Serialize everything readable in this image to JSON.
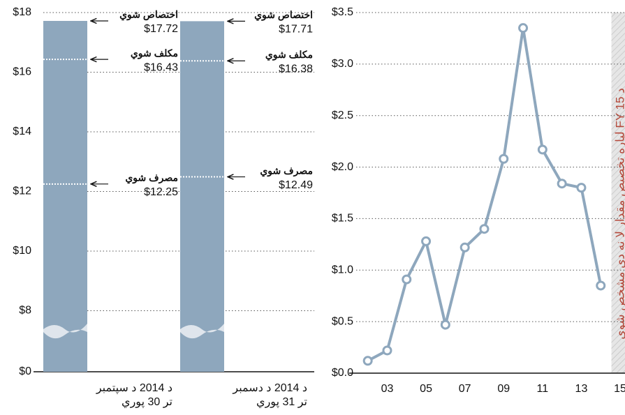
{
  "chart_data": [
    {
      "type": "bar",
      "categories": [
        [
          "د 2014 د سپتمبر",
          "تر 30 پوري"
        ],
        [
          "د 2014 د دسمبر",
          "تر 31 پوري"
        ]
      ],
      "series": [
        {
          "name": "اختصاص شوي",
          "values": [
            17.72,
            17.71
          ],
          "value_labels": [
            "$17.72",
            "$17.71"
          ]
        },
        {
          "name": "مکلف شوي",
          "values": [
            16.43,
            16.38
          ],
          "value_labels": [
            "$16.43",
            "$16.38"
          ]
        },
        {
          "name": "مصرف شوي",
          "values": [
            12.25,
            12.49
          ],
          "value_labels": [
            "$12.25",
            "$12.49"
          ]
        }
      ],
      "color": "#8ea7bd",
      "ylim": [
        0,
        18
      ],
      "y_break": [
        0,
        6
      ],
      "yticks": [
        {
          "value": 0,
          "label": "$0"
        },
        {
          "value": 8,
          "label": "$8"
        },
        {
          "value": 10,
          "label": "$10"
        },
        {
          "value": 12,
          "label": "$12"
        },
        {
          "value": 14,
          "label": "$14"
        },
        {
          "value": 16,
          "label": "$16"
        },
        {
          "value": 18,
          "label": "$18"
        }
      ],
      "grid": true
    },
    {
      "type": "line",
      "x": [
        2002,
        2003,
        2004,
        2005,
        2006,
        2007,
        2008,
        2009,
        2010,
        2011,
        2012,
        2013,
        2014
      ],
      "values": [
        0.12,
        0.22,
        0.91,
        1.28,
        0.47,
        1.22,
        1.4,
        2.08,
        3.35,
        2.17,
        1.84,
        1.8,
        0.85
      ],
      "color": "#8ea7bd",
      "xlim": [
        2001.4,
        2015.25
      ],
      "ylim": [
        0,
        3.5
      ],
      "xticks": [
        {
          "value": 2003,
          "label": "03"
        },
        {
          "value": 2005,
          "label": "05"
        },
        {
          "value": 2007,
          "label": "07"
        },
        {
          "value": 2009,
          "label": "09"
        },
        {
          "value": 2011,
          "label": "11"
        },
        {
          "value": 2013,
          "label": "13"
        },
        {
          "value": 2015,
          "label": "15"
        }
      ],
      "yticks": [
        {
          "value": 0,
          "label": "$0.0"
        },
        {
          "value": 0.5,
          "label": "$0.5"
        },
        {
          "value": 1.0,
          "label": "$1.0"
        },
        {
          "value": 1.5,
          "label": "$1.5"
        },
        {
          "value": 2.0,
          "label": "$2.0"
        },
        {
          "value": 2.5,
          "label": "$2.5"
        },
        {
          "value": 3.0,
          "label": "$3.0"
        },
        {
          "value": 3.5,
          "label": "$3.5"
        }
      ],
      "grid": true,
      "shaded_region": {
        "x": [
          2014.55,
          2015.25
        ],
        "label": "د FY 15 لپاره تخصیص مقدار لا نه دی مشخص شوی"
      }
    }
  ]
}
